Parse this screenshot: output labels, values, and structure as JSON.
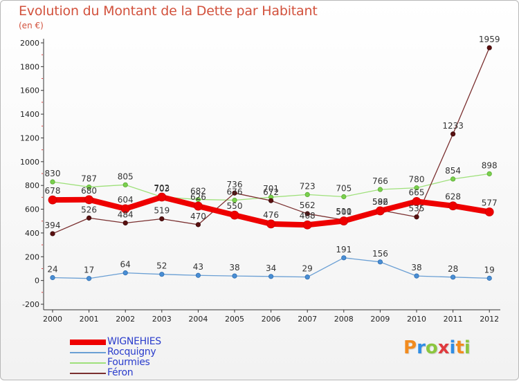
{
  "page": {
    "title": "Evolution du Montant de la Dette par Habitant",
    "unit": "(en €)",
    "logo_letters": [
      {
        "char": "P",
        "color": "#f28b1e"
      },
      {
        "char": "r",
        "color": "#2f8de4"
      },
      {
        "char": "o",
        "color": "#8cc63f"
      },
      {
        "char": "x",
        "color": "#e03a3e"
      },
      {
        "char": "i",
        "color": "#2f8de4"
      },
      {
        "char": "t",
        "color": "#f28b1e"
      },
      {
        "char": "i",
        "color": "#8cc63f"
      }
    ]
  },
  "chart_data": {
    "type": "line",
    "title": "Evolution du Montant de la Dette par Habitant",
    "subtitle": "(en €)",
    "xlabel": "",
    "ylabel": "",
    "x": [
      "2000",
      "2001",
      "2002",
      "2003",
      "2004",
      "2005",
      "2006",
      "2007",
      "2008",
      "2009",
      "2010",
      "2011",
      "2012"
    ],
    "ylim": [
      -200,
      2000
    ],
    "yticks": [
      "-200",
      "0",
      "200",
      "400",
      "600",
      "800",
      "1000",
      "1200",
      "1400",
      "1600",
      "1800",
      "2000"
    ],
    "grid": false,
    "legend_position": "bottom-left",
    "series": [
      {
        "name": "WIGNEHIES",
        "color": "#ee0000",
        "values": [
          678,
          680,
          604,
          702,
          626,
          550,
          476,
          468,
          501,
          586,
          665,
          628,
          577
        ],
        "labels": [
          "678",
          "680",
          "604",
          "702",
          "626",
          "550",
          "476",
          "468",
          "501",
          "586",
          "665",
          "628",
          "577"
        ]
      },
      {
        "name": "Rocquigny",
        "color": "#6a9fd4",
        "values": [
          24,
          17,
          64,
          52,
          43,
          38,
          34,
          29,
          191,
          156,
          38,
          28,
          19
        ],
        "labels": [
          "24",
          "17",
          "64",
          "52",
          "43",
          "38",
          "34",
          "29",
          "191",
          "156",
          "38",
          "28",
          "19"
        ]
      },
      {
        "name": "Fourmies",
        "color": "#9ee07a",
        "values": [
          830,
          787,
          805,
          703,
          682,
          676,
          701,
          723,
          705,
          766,
          780,
          854,
          898
        ],
        "labels": [
          "830",
          "787",
          "805",
          "703",
          "682",
          "676",
          "701",
          "723",
          "705",
          "766",
          "780",
          "854",
          "898"
        ]
      },
      {
        "name": "Féron",
        "color": "#7a2f2f",
        "values": [
          394,
          526,
          484,
          519,
          470,
          736,
          672,
          562,
          510,
          592,
          535,
          1233,
          1959
        ],
        "labels": [
          "394",
          "526",
          "484",
          "519",
          "470",
          "736",
          "672",
          "562",
          "510",
          "592",
          "535",
          "1233",
          "1959"
        ]
      }
    ]
  }
}
